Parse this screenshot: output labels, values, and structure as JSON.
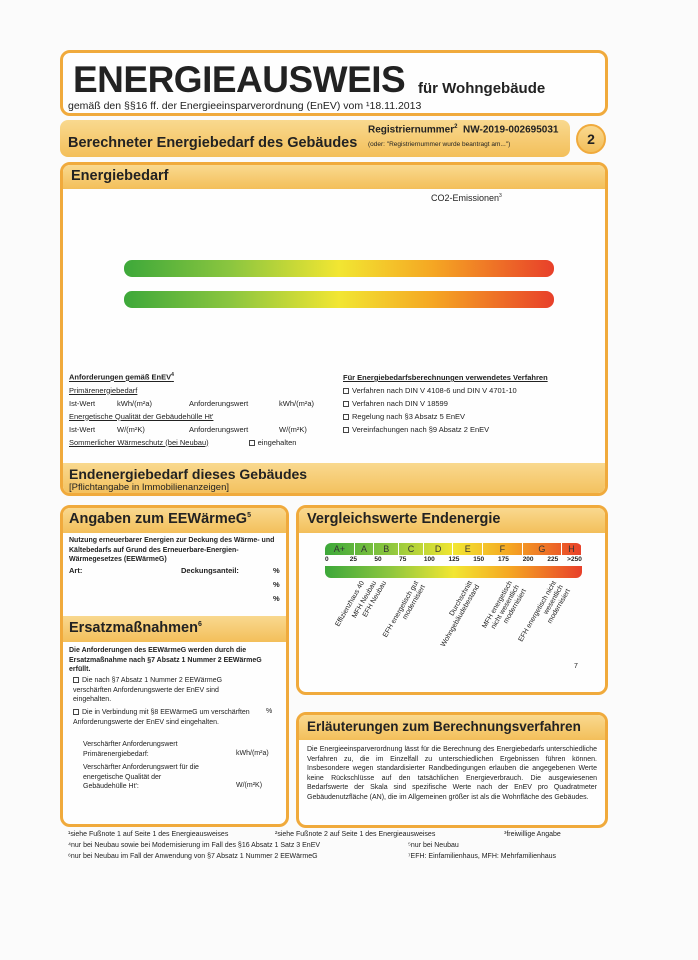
{
  "header": {
    "title": "ENERGIEAUSWEIS",
    "subtitle": "für Wohngebäude",
    "legal": "gemäß den §§16 ff. der Energieeinsparverordnung (EnEV) vom ¹18.11.2013"
  },
  "section_band": {
    "title": "Berechneter Energiebedarf des Gebäudes",
    "reg_label": "Registriernummer",
    "reg_sup": "2",
    "reg_number": "NW-2019-002695031",
    "reg_note": "(oder: \"Registriernummer wurde beantragt am...\")",
    "page_number": "2"
  },
  "energiebedarf": {
    "title": "Energiebedarf",
    "co2_label": "CO2-Emissionen",
    "co2_sup": "3",
    "requirements": {
      "title": "Anforderungen gemäß EnEV",
      "title_sup": "4",
      "primary": "Primärenergiebedarf",
      "ist": "Ist-Wert",
      "unit1": "kWh/(m²a)",
      "anf": "Anforderungswert",
      "quality": "Energetische Qualität der Gebäudehülle Ht'",
      "unit2": "W/(m²K)",
      "summer": "Sommerlicher Wärmeschutz (bei Neubau)",
      "kept": "eingehalten"
    },
    "methods": {
      "title": "Für Energiebedarfsberechnungen verwendetes Verfahren",
      "items": [
        "Verfahren nach DIN V 4108-6 und DIN V 4701-10",
        "Verfahren nach DIN V 18599",
        "Regelung nach §3 Absatz 5 EnEV",
        "Vereinfachungen nach §9 Absatz 2 EnEV"
      ]
    }
  },
  "endenergie": {
    "title": "Endenergiebedarf dieses Gebäudes",
    "note": "[Pflichtangabe in Immobilienanzeigen]"
  },
  "eewaerme": {
    "title": "Angaben zum EEWärmeG",
    "sup": "5",
    "intro": "Nutzung erneuerbarer Energien zur Deckung des Wärme- und Kältebedarfs auf Grund des Erneuerbare-Energien-Wärmegesetzes (EEWärmeG)",
    "art": "Art:",
    "deckung": "Deckungsanteil:",
    "pct": "%"
  },
  "ersatz": {
    "title": "Ersatzmaßnahmen",
    "sup": "6",
    "intro": "Die Anforderungen des EEWärmeG werden durch die Ersatzmaßnahme nach §7 Absatz 1 Nummer 2 EEWärmeG erfüllt.",
    "opt1": "Die nach §7 Absatz 1 Nummer 2 EEWärmeG verschärften Anforderungswerte der EnEV sind eingehalten.",
    "opt2": "Die in Verbindung mit §8 EEWärmeG um verschärften Anforderungswerte der EnEV sind eingehalten.",
    "pct": "%",
    "v1": "Verschärfter Anforderungswert Primärenergiebedarf:",
    "u1": "kWh/(m²a)",
    "v2": "Verschärfter Anforderungswert für die energetische Qualität der Gebäudehülle Ht':",
    "u2": "W/(m²K)"
  },
  "vergleich": {
    "title": "Vergleichswerte Endenergie",
    "classes": [
      "A+",
      "A",
      "B",
      "C",
      "D",
      "E",
      "F",
      "G",
      "H"
    ],
    "ticks": [
      "0",
      "25",
      "50",
      "75",
      "100",
      "125",
      "150",
      "175",
      "200",
      "225",
      ">250"
    ],
    "labels": [
      "Effizienzhaus 40",
      "MFH Neubau",
      "EFH Neubau",
      "EFH energetisch gut modernisiert",
      "Durchschnitt Wohngebäudebestand",
      "MFH energetisch nicht wesentlich modernisiert",
      "EFH energetisch nicht wesentlich modernisiert"
    ],
    "footnote": "7"
  },
  "erlaeuterung": {
    "title": "Erläuterungen zum Berechnungsverfahren",
    "text": "Die Energieeinsparverordnung lässt für die Berechnung des Energiebedarfs unterschiedliche Verfahren zu, die im Einzelfall zu unterschiedlichen Ergebnissen führen können. Insbesondere wegen standardisierter Randbedingungen erlauben die angegebenen Werte keine Rückschlüsse auf den tatsächlichen Energieverbrauch. Die ausgewiesenen Bedarfswerte der Skala sind spezifische Werte nach der EnEV pro Quadratmeter Gebäudenutzfläche (AN), die im Allgemeinen größer ist als die Wohnfläche des Gebäudes."
  },
  "footnotes": [
    "¹siehe Fußnote 1 auf Seite 1 des Energieausweises",
    "²siehe Fußnote 2 auf Seite 1 des Energieausweises",
    "³freiwillige Angabe",
    "⁴nur bei Neubau sowie bei Modernisierung im Fall des §16 Absatz 1 Satz 3 EnEV",
    "⁵nur bei Neubau",
    "⁶nur bei Neubau im Fall der Anwendung von §7 Absatz 1 Nummer 2 EEWärmeG",
    "⁷EFH: Einfamilienhaus, MFH: Mehrfamilienhaus"
  ],
  "colors": {
    "border": "#f0aa3c",
    "band": "#f3bf5a",
    "scale": [
      "#3da83a",
      "#8cc63f",
      "#f2e632",
      "#f5a623",
      "#e8402a"
    ]
  }
}
